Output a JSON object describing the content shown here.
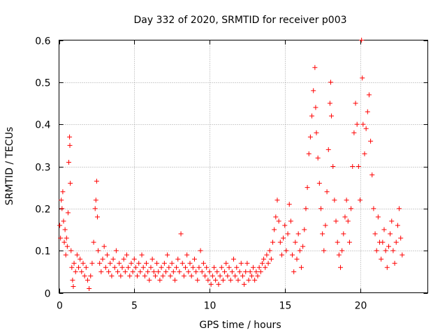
{
  "chart_data": {
    "type": "scatter",
    "title": "Day 332 of 2020, SRMTID for receiver p003",
    "xlabel": "GPS time / hours",
    "ylabel": "SRMTID / TECUs",
    "xlim": [
      0,
      24.5
    ],
    "ylim": [
      0,
      0.6
    ],
    "x_ticks": [
      0,
      5,
      10,
      15,
      20
    ],
    "y_ticks": [
      0,
      0.1,
      0.2,
      0.3,
      0.4,
      0.5,
      0.6
    ],
    "x_tick_labels": [
      "0",
      "5",
      "10",
      "15",
      "20"
    ],
    "y_tick_labels": [
      "0",
      "0.1",
      "0.2",
      "0.3",
      "0.4",
      "0.5",
      "0.6"
    ],
    "grid": true,
    "marker": "+",
    "color": "#ff0000",
    "series": [
      {
        "name": "SRMTID",
        "points": [
          [
            0.05,
            0.16
          ],
          [
            0.1,
            0.13
          ],
          [
            0.15,
            0.22
          ],
          [
            0.2,
            0.2
          ],
          [
            0.25,
            0.24
          ],
          [
            0.3,
            0.17
          ],
          [
            0.35,
            0.12
          ],
          [
            0.4,
            0.15
          ],
          [
            0.45,
            0.09
          ],
          [
            0.5,
            0.13
          ],
          [
            0.55,
            0.11
          ],
          [
            0.6,
            0.19
          ],
          [
            0.65,
            0.31
          ],
          [
            0.7,
            0.37
          ],
          [
            0.72,
            0.35
          ],
          [
            0.75,
            0.26
          ],
          [
            0.8,
            0.1
          ],
          [
            0.85,
            0.06
          ],
          [
            0.9,
            0.03
          ],
          [
            0.95,
            0.015
          ],
          [
            1.0,
            0.07
          ],
          [
            1.1,
            0.05
          ],
          [
            1.2,
            0.09
          ],
          [
            1.3,
            0.06
          ],
          [
            1.4,
            0.08
          ],
          [
            1.5,
            0.05
          ],
          [
            1.6,
            0.07
          ],
          [
            1.7,
            0.04
          ],
          [
            1.8,
            0.06
          ],
          [
            1.9,
            0.03
          ],
          [
            2.0,
            0.01
          ],
          [
            2.1,
            0.04
          ],
          [
            2.2,
            0.07
          ],
          [
            2.3,
            0.12
          ],
          [
            2.4,
            0.2
          ],
          [
            2.45,
            0.22
          ],
          [
            2.5,
            0.265
          ],
          [
            2.55,
            0.18
          ],
          [
            2.6,
            0.1
          ],
          [
            2.7,
            0.07
          ],
          [
            2.8,
            0.05
          ],
          [
            2.9,
            0.08
          ],
          [
            3.0,
            0.11
          ],
          [
            3.1,
            0.06
          ],
          [
            3.2,
            0.09
          ],
          [
            3.3,
            0.05
          ],
          [
            3.4,
            0.07
          ],
          [
            3.5,
            0.04
          ],
          [
            3.6,
            0.08
          ],
          [
            3.7,
            0.06
          ],
          [
            3.8,
            0.1
          ],
          [
            3.9,
            0.05
          ],
          [
            4.0,
            0.07
          ],
          [
            4.1,
            0.04
          ],
          [
            4.2,
            0.06
          ],
          [
            4.3,
            0.08
          ],
          [
            4.4,
            0.05
          ],
          [
            4.5,
            0.09
          ],
          [
            4.6,
            0.06
          ],
          [
            4.7,
            0.04
          ],
          [
            4.8,
            0.07
          ],
          [
            4.9,
            0.05
          ],
          [
            5.0,
            0.08
          ],
          [
            5.1,
            0.06
          ],
          [
            5.2,
            0.04
          ],
          [
            5.3,
            0.07
          ],
          [
            5.4,
            0.05
          ],
          [
            5.5,
            0.09
          ],
          [
            5.6,
            0.06
          ],
          [
            5.7,
            0.04
          ],
          [
            5.8,
            0.07
          ],
          [
            5.9,
            0.05
          ],
          [
            6.0,
            0.03
          ],
          [
            6.1,
            0.06
          ],
          [
            6.2,
            0.08
          ],
          [
            6.3,
            0.05
          ],
          [
            6.4,
            0.04
          ],
          [
            6.5,
            0.07
          ],
          [
            6.6,
            0.05
          ],
          [
            6.7,
            0.03
          ],
          [
            6.8,
            0.06
          ],
          [
            6.9,
            0.04
          ],
          [
            7.0,
            0.07
          ],
          [
            7.1,
            0.05
          ],
          [
            7.2,
            0.09
          ],
          [
            7.3,
            0.06
          ],
          [
            7.4,
            0.04
          ],
          [
            7.5,
            0.07
          ],
          [
            7.6,
            0.05
          ],
          [
            7.7,
            0.03
          ],
          [
            7.8,
            0.06
          ],
          [
            7.9,
            0.08
          ],
          [
            8.0,
            0.05
          ],
          [
            8.1,
            0.14
          ],
          [
            8.2,
            0.07
          ],
          [
            8.3,
            0.04
          ],
          [
            8.4,
            0.06
          ],
          [
            8.5,
            0.09
          ],
          [
            8.6,
            0.05
          ],
          [
            8.7,
            0.07
          ],
          [
            8.8,
            0.04
          ],
          [
            8.9,
            0.06
          ],
          [
            9.0,
            0.08
          ],
          [
            9.1,
            0.05
          ],
          [
            9.2,
            0.03
          ],
          [
            9.3,
            0.06
          ],
          [
            9.4,
            0.1
          ],
          [
            9.5,
            0.05
          ],
          [
            9.6,
            0.07
          ],
          [
            9.7,
            0.04
          ],
          [
            9.8,
            0.06
          ],
          [
            9.9,
            0.03
          ],
          [
            10.0,
            0.05
          ],
          [
            10.1,
            0.02
          ],
          [
            10.2,
            0.04
          ],
          [
            10.3,
            0.06
          ],
          [
            10.4,
            0.03
          ],
          [
            10.5,
            0.05
          ],
          [
            10.6,
            0.02
          ],
          [
            10.7,
            0.04
          ],
          [
            10.8,
            0.06
          ],
          [
            10.9,
            0.03
          ],
          [
            11.0,
            0.05
          ],
          [
            11.1,
            0.07
          ],
          [
            11.2,
            0.04
          ],
          [
            11.3,
            0.06
          ],
          [
            11.4,
            0.03
          ],
          [
            11.5,
            0.05
          ],
          [
            11.6,
            0.08
          ],
          [
            11.7,
            0.04
          ],
          [
            11.8,
            0.06
          ],
          [
            11.9,
            0.03
          ],
          [
            12.0,
            0.05
          ],
          [
            12.1,
            0.07
          ],
          [
            12.2,
            0.04
          ],
          [
            12.3,
            0.02
          ],
          [
            12.4,
            0.05
          ],
          [
            12.5,
            0.07
          ],
          [
            12.6,
            0.03
          ],
          [
            12.7,
            0.05
          ],
          [
            12.8,
            0.04
          ],
          [
            12.9,
            0.06
          ],
          [
            13.0,
            0.03
          ],
          [
            13.1,
            0.05
          ],
          [
            13.2,
            0.04
          ],
          [
            13.3,
            0.06
          ],
          [
            13.4,
            0.05
          ],
          [
            13.5,
            0.07
          ],
          [
            13.6,
            0.08
          ],
          [
            13.7,
            0.06
          ],
          [
            13.8,
            0.09
          ],
          [
            13.9,
            0.07
          ],
          [
            14.0,
            0.1
          ],
          [
            14.1,
            0.08
          ],
          [
            14.2,
            0.12
          ],
          [
            14.3,
            0.15
          ],
          [
            14.4,
            0.18
          ],
          [
            14.5,
            0.22
          ],
          [
            14.6,
            0.17
          ],
          [
            14.7,
            0.12
          ],
          [
            14.8,
            0.09
          ],
          [
            14.9,
            0.13
          ],
          [
            15.0,
            0.16
          ],
          [
            15.1,
            0.1
          ],
          [
            15.2,
            0.14
          ],
          [
            15.3,
            0.21
          ],
          [
            15.4,
            0.17
          ],
          [
            15.5,
            0.09
          ],
          [
            15.6,
            0.05
          ],
          [
            15.7,
            0.12
          ],
          [
            15.8,
            0.08
          ],
          [
            15.9,
            0.14
          ],
          [
            16.0,
            0.1
          ],
          [
            16.1,
            0.06
          ],
          [
            16.2,
            0.11
          ],
          [
            16.3,
            0.15
          ],
          [
            16.4,
            0.2
          ],
          [
            16.5,
            0.25
          ],
          [
            16.6,
            0.33
          ],
          [
            16.7,
            0.37
          ],
          [
            16.8,
            0.42
          ],
          [
            16.9,
            0.48
          ],
          [
            17.0,
            0.535
          ],
          [
            17.05,
            0.44
          ],
          [
            17.1,
            0.38
          ],
          [
            17.2,
            0.32
          ],
          [
            17.3,
            0.26
          ],
          [
            17.4,
            0.2
          ],
          [
            17.5,
            0.14
          ],
          [
            17.6,
            0.1
          ],
          [
            17.7,
            0.16
          ],
          [
            17.8,
            0.24
          ],
          [
            17.9,
            0.34
          ],
          [
            18.0,
            0.45
          ],
          [
            18.05,
            0.5
          ],
          [
            18.1,
            0.42
          ],
          [
            18.2,
            0.3
          ],
          [
            18.3,
            0.22
          ],
          [
            18.4,
            0.17
          ],
          [
            18.5,
            0.12
          ],
          [
            18.6,
            0.09
          ],
          [
            18.7,
            0.06
          ],
          [
            18.8,
            0.1
          ],
          [
            18.9,
            0.14
          ],
          [
            19.0,
            0.18
          ],
          [
            19.1,
            0.22
          ],
          [
            19.2,
            0.17
          ],
          [
            19.3,
            0.12
          ],
          [
            19.4,
            0.2
          ],
          [
            19.5,
            0.3
          ],
          [
            19.6,
            0.38
          ],
          [
            19.7,
            0.45
          ],
          [
            19.8,
            0.4
          ],
          [
            19.9,
            0.3
          ],
          [
            20.0,
            0.22
          ],
          [
            20.1,
            0.6
          ],
          [
            20.15,
            0.51
          ],
          [
            20.2,
            0.4
          ],
          [
            20.3,
            0.33
          ],
          [
            20.4,
            0.39
          ],
          [
            20.5,
            0.43
          ],
          [
            20.6,
            0.47
          ],
          [
            20.7,
            0.36
          ],
          [
            20.8,
            0.28
          ],
          [
            20.9,
            0.2
          ],
          [
            21.0,
            0.14
          ],
          [
            21.1,
            0.1
          ],
          [
            21.2,
            0.18
          ],
          [
            21.3,
            0.12
          ],
          [
            21.4,
            0.08
          ],
          [
            21.5,
            0.12
          ],
          [
            21.6,
            0.15
          ],
          [
            21.7,
            0.1
          ],
          [
            21.8,
            0.06
          ],
          [
            21.9,
            0.11
          ],
          [
            22.0,
            0.14
          ],
          [
            22.1,
            0.17
          ],
          [
            22.2,
            0.1
          ],
          [
            22.3,
            0.07
          ],
          [
            22.4,
            0.12
          ],
          [
            22.5,
            0.16
          ],
          [
            22.6,
            0.2
          ],
          [
            22.7,
            0.13
          ],
          [
            22.8,
            0.09
          ]
        ]
      }
    ]
  }
}
